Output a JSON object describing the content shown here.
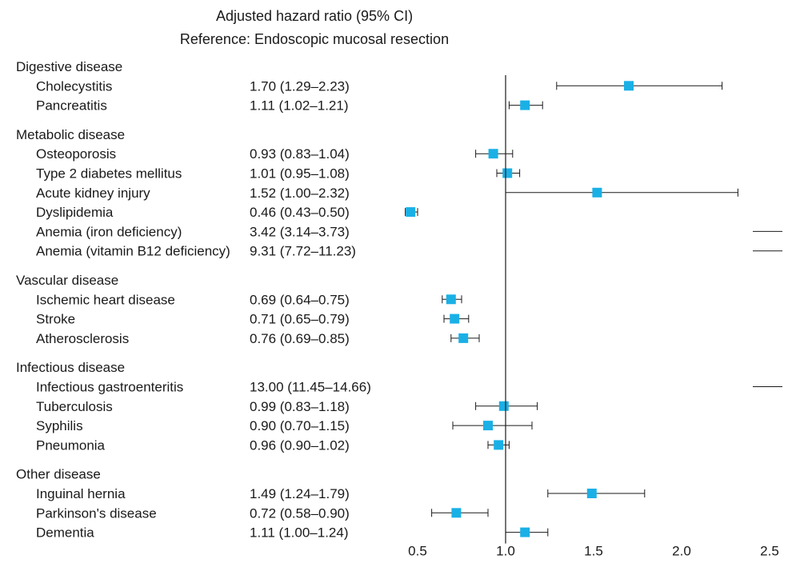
{
  "chart_data": {
    "type": "forest",
    "title": "Adjusted hazard ratio (95% CI)",
    "subtitle": "Reference: Endoscopic mucosal resection",
    "xlim": [
      0.5,
      2.5
    ],
    "xticks": [
      "0.5",
      "1.0",
      "1.5",
      "2.0",
      "2.5"
    ],
    "reference_line": 1.0,
    "marker_color": "#1ab0e6",
    "groups": [
      {
        "name": "Digestive disease",
        "items": [
          {
            "label": "Cholecystitis",
            "text": "1.70 (1.29–2.23)",
            "hr": 1.7,
            "lo": 1.29,
            "hi": 2.23
          },
          {
            "label": "Pancreatitis",
            "text": "1.11 (1.02–1.21)",
            "hr": 1.11,
            "lo": 1.02,
            "hi": 1.21
          }
        ]
      },
      {
        "name": "Metabolic disease",
        "items": [
          {
            "label": "Osteoporosis",
            "text": "0.93 (0.83–1.04)",
            "hr": 0.93,
            "lo": 0.83,
            "hi": 1.04
          },
          {
            "label": "Type 2 diabetes mellitus",
            "text": "1.01 (0.95–1.08)",
            "hr": 1.01,
            "lo": 0.95,
            "hi": 1.08
          },
          {
            "label": "Acute kidney injury",
            "text": "1.52 (1.00–2.32)",
            "hr": 1.52,
            "lo": 1.0,
            "hi": 2.32
          },
          {
            "label": "Dyslipidemia",
            "text": "0.46 (0.43–0.50)",
            "hr": 0.46,
            "lo": 0.43,
            "hi": 0.5
          },
          {
            "label": "Anemia (iron deficiency)",
            "text": "3.42 (3.14–3.73)",
            "hr": 3.42,
            "lo": 3.14,
            "hi": 3.73
          },
          {
            "label": "Anemia (vitamin B12 deficiency)",
            "text": "9.31 (7.72–11.23)",
            "hr": 9.31,
            "lo": 7.72,
            "hi": 11.23
          }
        ]
      },
      {
        "name": "Vascular disease",
        "items": [
          {
            "label": "Ischemic heart disease",
            "text": "0.69 (0.64–0.75)",
            "hr": 0.69,
            "lo": 0.64,
            "hi": 0.75
          },
          {
            "label": "Stroke",
            "text": "0.71 (0.65–0.79)",
            "hr": 0.71,
            "lo": 0.65,
            "hi": 0.79
          },
          {
            "label": "Atherosclerosis",
            "text": "0.76 (0.69–0.85)",
            "hr": 0.76,
            "lo": 0.69,
            "hi": 0.85
          }
        ]
      },
      {
        "name": "Infectious disease",
        "items": [
          {
            "label": "Infectious gastroenteritis",
            "text": "13.00 (11.45–14.66)",
            "hr": 13.0,
            "lo": 11.45,
            "hi": 14.66
          },
          {
            "label": "Tuberculosis",
            "text": "0.99 (0.83–1.18)",
            "hr": 0.99,
            "lo": 0.83,
            "hi": 1.18
          },
          {
            "label": "Syphilis",
            "text": "0.90 (0.70–1.15)",
            "hr": 0.9,
            "lo": 0.7,
            "hi": 1.15
          },
          {
            "label": "Pneumonia",
            "text": "0.96 (0.90–1.02)",
            "hr": 0.96,
            "lo": 0.9,
            "hi": 1.02
          }
        ]
      },
      {
        "name": "Other disease",
        "items": [
          {
            "label": "Inguinal hernia",
            "text": "1.49 (1.24–1.79)",
            "hr": 1.49,
            "lo": 1.24,
            "hi": 1.79
          },
          {
            "label": "Parkinson's disease",
            "text": "0.72 (0.58–0.90)",
            "hr": 0.72,
            "lo": 0.58,
            "hi": 0.9
          },
          {
            "label": "Dementia",
            "text": "1.11 (1.00–1.24)",
            "hr": 1.11,
            "lo": 1.0,
            "hi": 1.24
          }
        ]
      }
    ]
  }
}
